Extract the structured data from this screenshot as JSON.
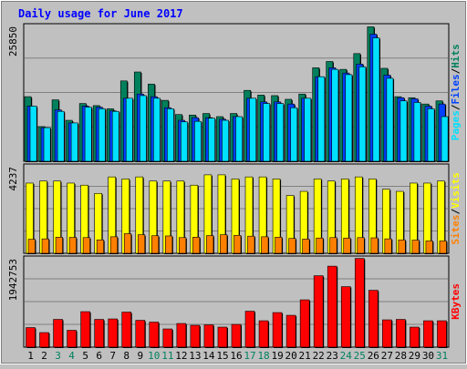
{
  "title": "Daily usage for June 2017",
  "colors": {
    "background": "#c0c0c0",
    "panel": "#c0c0c0",
    "grid": "#808080",
    "title": "#0000ff",
    "hits": "#00805c",
    "files": "#0040ff",
    "pages": "#00e0ff",
    "visits": "#ffff00",
    "sites": "#ff8000",
    "kbytes": "#ff0000",
    "weekend_label": "#00805c",
    "weekday_label": "#000000"
  },
  "chart_data": [
    {
      "type": "bar",
      "title": "Daily usage for June 2017",
      "panel": "hits-files-pages",
      "axis_max_label": "25850",
      "ylim": [
        0,
        25850
      ],
      "legend": [
        "Pages",
        "/",
        "Files",
        "/",
        "Hits"
      ],
      "categories": [
        "1",
        "2",
        "3",
        "4",
        "5",
        "6",
        "7",
        "8",
        "9",
        "10",
        "11",
        "12",
        "13",
        "14",
        "15",
        "16",
        "17",
        "18",
        "19",
        "20",
        "21",
        "22",
        "23",
        "24",
        "25",
        "26",
        "27",
        "28",
        "29",
        "30",
        "31"
      ],
      "series": [
        {
          "name": "Hits",
          "values": [
            12300,
            6600,
            11700,
            7800,
            11000,
            10600,
            10000,
            15300,
            17000,
            14700,
            11600,
            8900,
            8800,
            9100,
            8500,
            9100,
            13500,
            12600,
            12500,
            11800,
            12800,
            17800,
            19000,
            17500,
            20500,
            25600,
            17700,
            12300,
            12100,
            10900,
            11500
          ]
        },
        {
          "name": "Files",
          "values": [
            10500,
            6400,
            9800,
            7300,
            10500,
            10300,
            9600,
            12000,
            12800,
            12300,
            10200,
            7800,
            8300,
            8300,
            8000,
            8500,
            12000,
            11300,
            11300,
            10900,
            12000,
            16100,
            17800,
            16800,
            18500,
            24200,
            16400,
            12100,
            11900,
            10500,
            10900
          ]
        },
        {
          "name": "Pages",
          "values": [
            10500,
            6400,
            9500,
            7300,
            10300,
            10000,
            9500,
            12000,
            12500,
            12000,
            10000,
            7500,
            7600,
            8200,
            7800,
            8500,
            12000,
            11000,
            11000,
            10200,
            12000,
            16100,
            17500,
            16500,
            18000,
            23500,
            15800,
            11500,
            11200,
            10000,
            8500
          ]
        }
      ]
    },
    {
      "type": "bar",
      "panel": "visits-sites",
      "axis_max_label": "4237",
      "ylim": [
        0,
        4237
      ],
      "legend": [
        "Sites",
        "/",
        "Visits"
      ],
      "categories": [
        "1",
        "2",
        "3",
        "4",
        "5",
        "6",
        "7",
        "8",
        "9",
        "10",
        "11",
        "12",
        "13",
        "14",
        "15",
        "16",
        "17",
        "18",
        "19",
        "20",
        "21",
        "22",
        "23",
        "24",
        "25",
        "26",
        "27",
        "28",
        "29",
        "30",
        "31"
      ],
      "series": [
        {
          "name": "Visits",
          "values": [
            3400,
            3500,
            3500,
            3400,
            3300,
            2900,
            3700,
            3600,
            3700,
            3500,
            3500,
            3500,
            3300,
            3800,
            3800,
            3600,
            3700,
            3700,
            3600,
            2800,
            3000,
            3600,
            3500,
            3600,
            3700,
            3600,
            3100,
            3000,
            3400,
            3400,
            3500
          ]
        },
        {
          "name": "Sites",
          "values": [
            680,
            700,
            780,
            770,
            760,
            650,
            800,
            950,
            900,
            850,
            840,
            760,
            780,
            860,
            900,
            870,
            830,
            800,
            780,
            720,
            690,
            740,
            760,
            740,
            760,
            750,
            700,
            650,
            640,
            600,
            600
          ]
        }
      ]
    },
    {
      "type": "bar",
      "panel": "kbytes",
      "axis_max_label": "1942753",
      "ylim": [
        0,
        1942753
      ],
      "legend": [
        "KBytes"
      ],
      "categories": [
        "1",
        "2",
        "3",
        "4",
        "5",
        "6",
        "7",
        "8",
        "9",
        "10",
        "11",
        "12",
        "13",
        "14",
        "15",
        "16",
        "17",
        "18",
        "19",
        "20",
        "21",
        "22",
        "23",
        "24",
        "25",
        "26",
        "27",
        "28",
        "29",
        "30",
        "31"
      ],
      "series": [
        {
          "name": "KBytes",
          "values": [
            430000,
            320000,
            610000,
            370000,
            780000,
            610000,
            620000,
            770000,
            590000,
            550000,
            400000,
            520000,
            480000,
            490000,
            440000,
            500000,
            790000,
            580000,
            760000,
            700000,
            1040000,
            1570000,
            1780000,
            1330000,
            1950000,
            1250000,
            600000,
            610000,
            440000,
            580000,
            580000
          ]
        }
      ]
    }
  ],
  "day_labels": [
    "1",
    "2",
    "3",
    "4",
    "5",
    "6",
    "7",
    "8",
    "9",
    "10",
    "11",
    "12",
    "13",
    "14",
    "15",
    "16",
    "17",
    "18",
    "19",
    "20",
    "21",
    "22",
    "23",
    "24",
    "25",
    "26",
    "27",
    "28",
    "29",
    "30",
    "31"
  ],
  "weekend_days": [
    3,
    4,
    10,
    11,
    17,
    18,
    24,
    25,
    31
  ]
}
